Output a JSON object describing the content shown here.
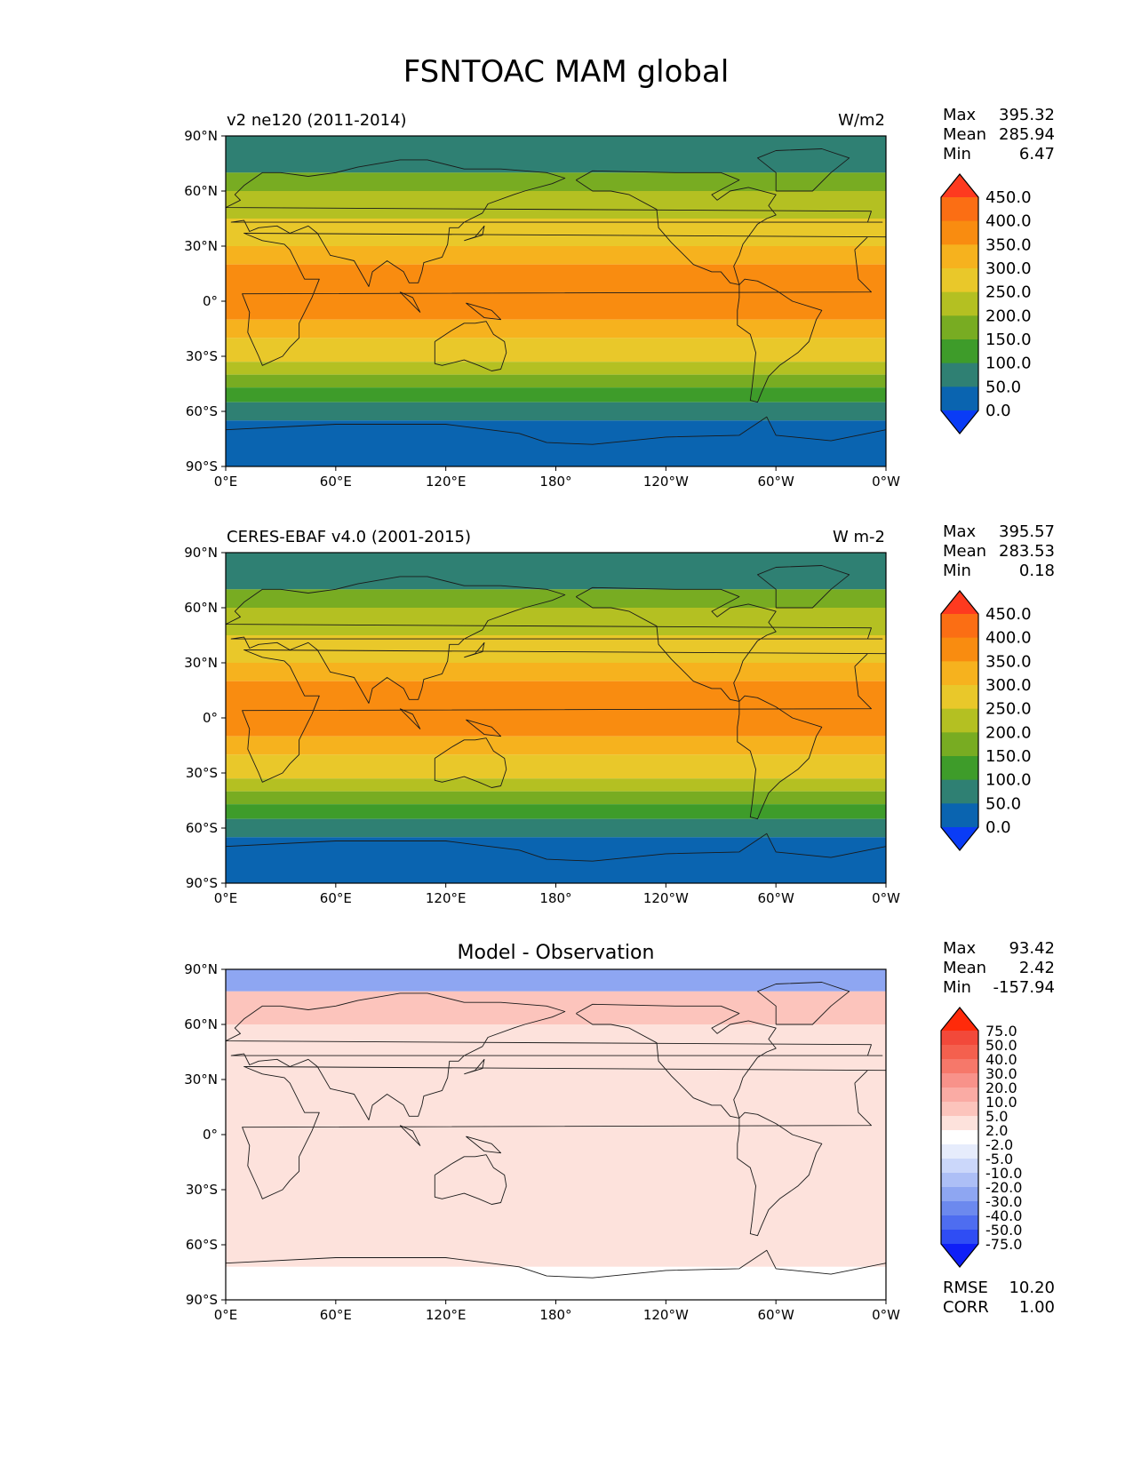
{
  "figure_title": "FSNTOAC MAM global",
  "lat_ticks": [
    "90°N",
    "60°N",
    "30°N",
    "0°",
    "30°S",
    "60°S",
    "90°S"
  ],
  "lon_ticks": [
    "0°E",
    "60°E",
    "120°E",
    "180°",
    "120°W",
    "60°W",
    "0°W"
  ],
  "stat_labels": {
    "max": "Max",
    "mean": "Mean",
    "min": "Min",
    "rmse": "RMSE",
    "corr": "CORR"
  },
  "panels": [
    {
      "left_title": "v2 ne120 (2011-2014)",
      "center_title": "",
      "units": "W/m2",
      "stats": {
        "max": "395.32",
        "mean": "285.94",
        "min": "6.47"
      },
      "extra_stats": null,
      "colorbar": {
        "labels": [
          "450.0",
          "400.0",
          "350.0",
          "300.0",
          "250.0",
          "200.0",
          "150.0",
          "100.0",
          "50.0",
          "0.0"
        ],
        "colors": [
          "#fe3a1f",
          "#fb6e14",
          "#f98c10",
          "#f6b21e",
          "#e9c82a",
          "#b4c022",
          "#78ac22",
          "#3e9c2a",
          "#2f8073",
          "#0a64b0",
          "#0a3cf6"
        ]
      }
    },
    {
      "left_title": "CERES-EBAF v4.0 (2001-2015)",
      "center_title": "",
      "units": "W m-2",
      "stats": {
        "max": "395.57",
        "mean": "283.53",
        "min": "0.18"
      },
      "extra_stats": null,
      "colorbar": {
        "labels": [
          "450.0",
          "400.0",
          "350.0",
          "300.0",
          "250.0",
          "200.0",
          "150.0",
          "100.0",
          "50.0",
          "0.0"
        ],
        "colors": [
          "#fe3a1f",
          "#fb6e14",
          "#f98c10",
          "#f6b21e",
          "#e9c82a",
          "#b4c022",
          "#78ac22",
          "#3e9c2a",
          "#2f8073",
          "#0a64b0",
          "#0a3cf6"
        ]
      }
    },
    {
      "left_title": "",
      "center_title": "Model - Observation",
      "units": "",
      "stats": {
        "max": "93.42",
        "mean": "2.42",
        "min": "-157.94"
      },
      "extra_stats": {
        "rmse": "10.20",
        "corr": "1.00"
      },
      "colorbar": {
        "labels": [
          "75.0",
          "50.0",
          "40.0",
          "30.0",
          "20.0",
          "10.0",
          "5.0",
          "2.0",
          "-2.0",
          "-5.0",
          "-10.0",
          "-20.0",
          "-30.0",
          "-40.0",
          "-50.0",
          "-75.0"
        ],
        "colors": [
          "#ff2a0a",
          "#f2493a",
          "#f4604e",
          "#f6786a",
          "#f8928a",
          "#faaba4",
          "#fcc4bc",
          "#fde2dc",
          "#ffffff",
          "#e6ecfc",
          "#cbd7fa",
          "#adbff6",
          "#8ea6f2",
          "#6c89ee",
          "#4e6df0",
          "#2f4df4",
          "#0f1ff7"
        ]
      }
    }
  ],
  "chart_data": {
    "type": "heatmap",
    "title": "FSNTOAC MAM global",
    "x_axis": {
      "label": "",
      "range": [
        0,
        360
      ],
      "tick_labels": [
        "0°E",
        "60°E",
        "120°E",
        "180°",
        "120°W",
        "60°W",
        "0°W"
      ]
    },
    "y_axis": {
      "label": "",
      "range": [
        -90,
        90
      ],
      "tick_labels": [
        "90°N",
        "60°N",
        "30°N",
        "0°",
        "30°S",
        "60°S",
        "90°S"
      ]
    },
    "panels": [
      {
        "title": "v2 ne120 (2011-2014)",
        "units": "W/m2",
        "max": 395.32,
        "mean": 285.94,
        "min": 6.47,
        "levels": [
          0,
          50,
          100,
          150,
          200,
          250,
          300,
          350,
          400,
          450
        ],
        "zonal_bands": [
          {
            "lat": [
              70,
              90
            ],
            "value": 75
          },
          {
            "lat": [
              60,
              70
            ],
            "value": 175
          },
          {
            "lat": [
              45,
              60
            ],
            "value": 225
          },
          {
            "lat": [
              30,
              45
            ],
            "value": 275
          },
          {
            "lat": [
              20,
              30
            ],
            "value": 325
          },
          {
            "lat": [
              -10,
              20
            ],
            "value": 375
          },
          {
            "lat": [
              -20,
              -10
            ],
            "value": 325
          },
          {
            "lat": [
              -33,
              -20
            ],
            "value": 275
          },
          {
            "lat": [
              -40,
              -33
            ],
            "value": 225
          },
          {
            "lat": [
              -47,
              -40
            ],
            "value": 175
          },
          {
            "lat": [
              -55,
              -47
            ],
            "value": 125
          },
          {
            "lat": [
              -65,
              -55
            ],
            "value": 75
          },
          {
            "lat": [
              -90,
              -65
            ],
            "value": 25
          }
        ]
      },
      {
        "title": "CERES-EBAF v4.0 (2001-2015)",
        "units": "W m-2",
        "max": 395.57,
        "mean": 283.53,
        "min": 0.18,
        "levels": [
          0,
          50,
          100,
          150,
          200,
          250,
          300,
          350,
          400,
          450
        ],
        "zonal_bands": [
          {
            "lat": [
              70,
              90
            ],
            "value": 75
          },
          {
            "lat": [
              60,
              70
            ],
            "value": 175
          },
          {
            "lat": [
              45,
              60
            ],
            "value": 225
          },
          {
            "lat": [
              30,
              45
            ],
            "value": 275
          },
          {
            "lat": [
              20,
              30
            ],
            "value": 325
          },
          {
            "lat": [
              -10,
              20
            ],
            "value": 375
          },
          {
            "lat": [
              -20,
              -10
            ],
            "value": 325
          },
          {
            "lat": [
              -33,
              -20
            ],
            "value": 275
          },
          {
            "lat": [
              -40,
              -33
            ],
            "value": 225
          },
          {
            "lat": [
              -47,
              -40
            ],
            "value": 175
          },
          {
            "lat": [
              -55,
              -47
            ],
            "value": 125
          },
          {
            "lat": [
              -65,
              -55
            ],
            "value": 75
          },
          {
            "lat": [
              -90,
              -65
            ],
            "value": 25
          }
        ]
      },
      {
        "title": "Model - Observation",
        "max": 93.42,
        "mean": 2.42,
        "min": -157.94,
        "rmse": 10.2,
        "corr": 1.0,
        "levels": [
          -75,
          -50,
          -40,
          -30,
          -20,
          -10,
          -5,
          -2,
          2,
          5,
          10,
          20,
          30,
          40,
          50,
          75
        ],
        "zonal_bands": [
          {
            "lat": [
              78,
              90
            ],
            "value": -25
          },
          {
            "lat": [
              60,
              78
            ],
            "value": 8
          },
          {
            "lat": [
              30,
              60
            ],
            "value": 4
          },
          {
            "lat": [
              -60,
              30
            ],
            "value": 4
          },
          {
            "lat": [
              -72,
              -60
            ],
            "value": 3
          },
          {
            "lat": [
              -90,
              -72
            ],
            "value": 0
          }
        ]
      }
    ]
  }
}
